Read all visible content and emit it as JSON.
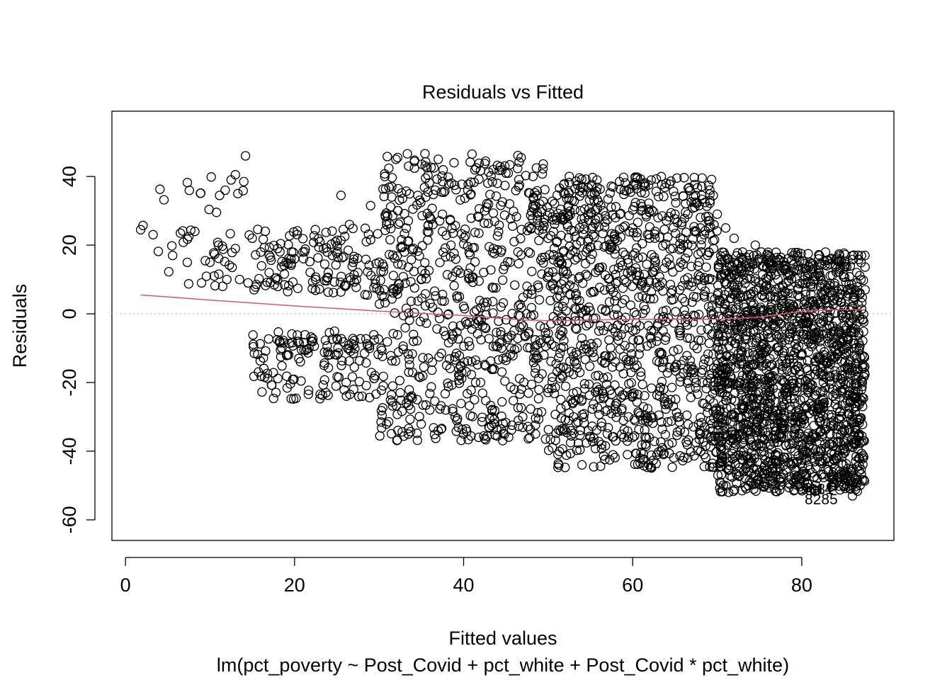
{
  "chart_data": {
    "type": "scatter",
    "title": "Residuals vs Fitted",
    "xlabel": "Fitted values",
    "subtitle": "lm(pct_poverty ~ Post_Covid + pct_white + Post_Covid * pct_white)",
    "ylabel": "Residuals",
    "xlim": [
      -1.6,
      90.9
    ],
    "ylim": [
      -66,
      59
    ],
    "x_ticks": [
      0,
      20,
      40,
      60,
      80
    ],
    "x_tick_labels": [
      "0",
      "20",
      "40",
      "60",
      "80"
    ],
    "y_ticks": [
      -60,
      -40,
      -20,
      0,
      20,
      40
    ],
    "y_tick_labels": [
      "-60",
      "-40",
      "-20",
      "0",
      "20",
      "40"
    ],
    "grid": false,
    "reference_line": {
      "y": 0,
      "style": "dotted",
      "color": "#bebebe"
    },
    "smooth_line": {
      "color": "#df536b",
      "x": [
        1.8,
        10,
        20,
        30,
        40,
        47,
        50,
        60,
        70,
        75,
        80,
        84,
        87.5
      ],
      "y": [
        5.5,
        4.0,
        2.3,
        0.8,
        -0.5,
        -1.8,
        -2.0,
        -1.6,
        -1.6,
        -1.0,
        0.8,
        1.2,
        1.2
      ]
    },
    "point_labels": [
      {
        "text": "9081",
        "x": 81.8,
        "y": -52.5
      },
      {
        "text": "9114",
        "x": 81.8,
        "y": -52.5
      },
      {
        "text": "8285",
        "x": 82.3,
        "y": -55.5
      }
    ],
    "scatter_summary": [
      {
        "x_range": [
          1.8,
          15
        ],
        "y_band": [
          8,
          40
        ],
        "density": "sparse"
      },
      {
        "x_range": [
          15,
          30
        ],
        "y_band": [
          -25,
          25
        ],
        "gap_around_zero": true,
        "density": "medium"
      },
      {
        "x_range": [
          30,
          50
        ],
        "y_band": [
          -37,
          47
        ],
        "density": "dense"
      },
      {
        "x_range": [
          50,
          70
        ],
        "y_band": [
          -45,
          40
        ],
        "density": "very dense"
      },
      {
        "x_range": [
          70,
          87.5
        ],
        "y_band": [
          -52,
          18
        ],
        "density": "saturated"
      }
    ],
    "points": [
      [
        1.8,
        24.5
      ],
      [
        6.5,
        23.5
      ],
      [
        7.5,
        22.5
      ],
      [
        8.2,
        24
      ],
      [
        9,
        9
      ],
      [
        10,
        15
      ],
      [
        10.5,
        11
      ],
      [
        11,
        20
      ],
      [
        11.5,
        8
      ],
      [
        11.8,
        36
      ],
      [
        12,
        10
      ],
      [
        12.5,
        39
      ],
      [
        13,
        40.5
      ],
      [
        13,
        19
      ],
      [
        13.5,
        10
      ],
      [
        14,
        38.5
      ],
      [
        14.2,
        46
      ],
      [
        14.5,
        9
      ],
      [
        15,
        22
      ],
      [
        16,
        18
      ],
      [
        17,
        12
      ],
      [
        18,
        19
      ],
      [
        18.2,
        -8
      ],
      [
        18.5,
        -10
      ],
      [
        19,
        15
      ],
      [
        20,
        16
      ],
      [
        20.5,
        -13
      ],
      [
        21,
        18
      ],
      [
        22,
        -8
      ],
      [
        22.5,
        10
      ],
      [
        23,
        21
      ],
      [
        23.5,
        -15
      ],
      [
        24,
        12
      ],
      [
        25,
        -12
      ],
      [
        25.5,
        34.5
      ],
      [
        26,
        8
      ],
      [
        26.5,
        26
      ],
      [
        27,
        -22
      ],
      [
        27.5,
        12
      ],
      [
        28,
        -24
      ],
      [
        28.5,
        21
      ],
      [
        29,
        31.5
      ],
      [
        29.5,
        -18
      ],
      [
        30,
        15
      ],
      [
        30.5,
        -21
      ],
      [
        31,
        28.5
      ],
      [
        31.5,
        34
      ],
      [
        32,
        45
      ],
      [
        32.2,
        45.5
      ],
      [
        32.5,
        -23
      ],
      [
        33,
        18
      ],
      [
        33.5,
        43
      ],
      [
        34,
        30.5
      ],
      [
        34.5,
        -25
      ],
      [
        35,
        10
      ],
      [
        35.5,
        39.5
      ],
      [
        36,
        -28
      ],
      [
        36.5,
        42.5
      ],
      [
        37,
        45
      ],
      [
        37.5,
        24
      ],
      [
        38,
        -15
      ],
      [
        38.5,
        20
      ],
      [
        39,
        -30
      ],
      [
        39.5,
        5
      ],
      [
        40,
        -35
      ],
      [
        40.5,
        36
      ],
      [
        41,
        46.5
      ],
      [
        41.5,
        42.5
      ],
      [
        42,
        -20
      ],
      [
        42.5,
        30
      ],
      [
        43,
        -33
      ],
      [
        43.5,
        42
      ],
      [
        44,
        38
      ],
      [
        44.5,
        -10
      ],
      [
        45,
        41
      ],
      [
        45.5,
        15
      ],
      [
        46,
        -22
      ],
      [
        46.5,
        37
      ],
      [
        47,
        -30
      ],
      [
        47.5,
        8
      ],
      [
        48,
        25
      ],
      [
        48.5,
        -35
      ],
      [
        49,
        32
      ],
      [
        49.5,
        -12
      ],
      [
        50,
        22
      ],
      [
        50.5,
        -39
      ],
      [
        51,
        28
      ],
      [
        51.5,
        -25
      ],
      [
        52,
        35
      ],
      [
        52.5,
        40
      ],
      [
        53,
        -30
      ],
      [
        53.5,
        37.5
      ],
      [
        54,
        -44
      ],
      [
        54.5,
        18
      ],
      [
        55,
        -36
      ],
      [
        55.5,
        35
      ],
      [
        56,
        -5
      ],
      [
        56.5,
        30
      ],
      [
        57,
        -28
      ],
      [
        57.5,
        20
      ],
      [
        58,
        -37
      ],
      [
        58.5,
        29
      ],
      [
        59,
        10
      ],
      [
        59.5,
        -30
      ],
      [
        60,
        25
      ],
      [
        60.5,
        -15
      ],
      [
        61,
        30
      ],
      [
        61.5,
        -38
      ],
      [
        62,
        22
      ],
      [
        62.5,
        -5
      ],
      [
        63,
        28
      ],
      [
        63.5,
        -39
      ],
      [
        64,
        15
      ],
      [
        64.5,
        -25
      ],
      [
        65,
        29
      ],
      [
        65.5,
        -30
      ],
      [
        66,
        20
      ],
      [
        66.5,
        -42
      ],
      [
        67,
        8
      ],
      [
        67.5,
        -20
      ],
      [
        68,
        25
      ],
      [
        68.5,
        -33
      ],
      [
        69,
        18
      ],
      [
        69.5,
        -37
      ],
      [
        70,
        29
      ],
      [
        70.5,
        -43
      ],
      [
        71,
        25
      ],
      [
        71.5,
        -20
      ],
      [
        72,
        22
      ],
      [
        72.5,
        -35
      ],
      [
        73,
        18
      ],
      [
        73.5,
        -30
      ],
      [
        74,
        -42
      ],
      [
        74.5,
        20
      ],
      [
        75,
        -25
      ],
      [
        75.5,
        -40
      ],
      [
        76,
        16
      ],
      [
        76.5,
        -45
      ],
      [
        77,
        15
      ],
      [
        77.5,
        -32
      ],
      [
        78,
        14
      ],
      [
        78.5,
        -38
      ],
      [
        79,
        17
      ],
      [
        79.5,
        -43
      ],
      [
        80,
        -30
      ],
      [
        80.5,
        -40
      ],
      [
        81,
        15
      ],
      [
        81.5,
        -36
      ],
      [
        82,
        16
      ],
      [
        82.5,
        -35
      ],
      [
        83,
        14
      ],
      [
        83.5,
        -38
      ],
      [
        84,
        -42
      ],
      [
        84.5,
        13
      ],
      [
        85,
        -46
      ],
      [
        85.2,
        -48
      ],
      [
        85.5,
        -45
      ],
      [
        85.8,
        -51
      ],
      [
        86,
        -53
      ],
      [
        86.2,
        -38
      ],
      [
        86.5,
        12
      ],
      [
        86.8,
        -35
      ],
      [
        87,
        10
      ],
      [
        87.2,
        -27
      ],
      [
        87.4,
        -37
      ],
      [
        87.5,
        7
      ]
    ]
  }
}
